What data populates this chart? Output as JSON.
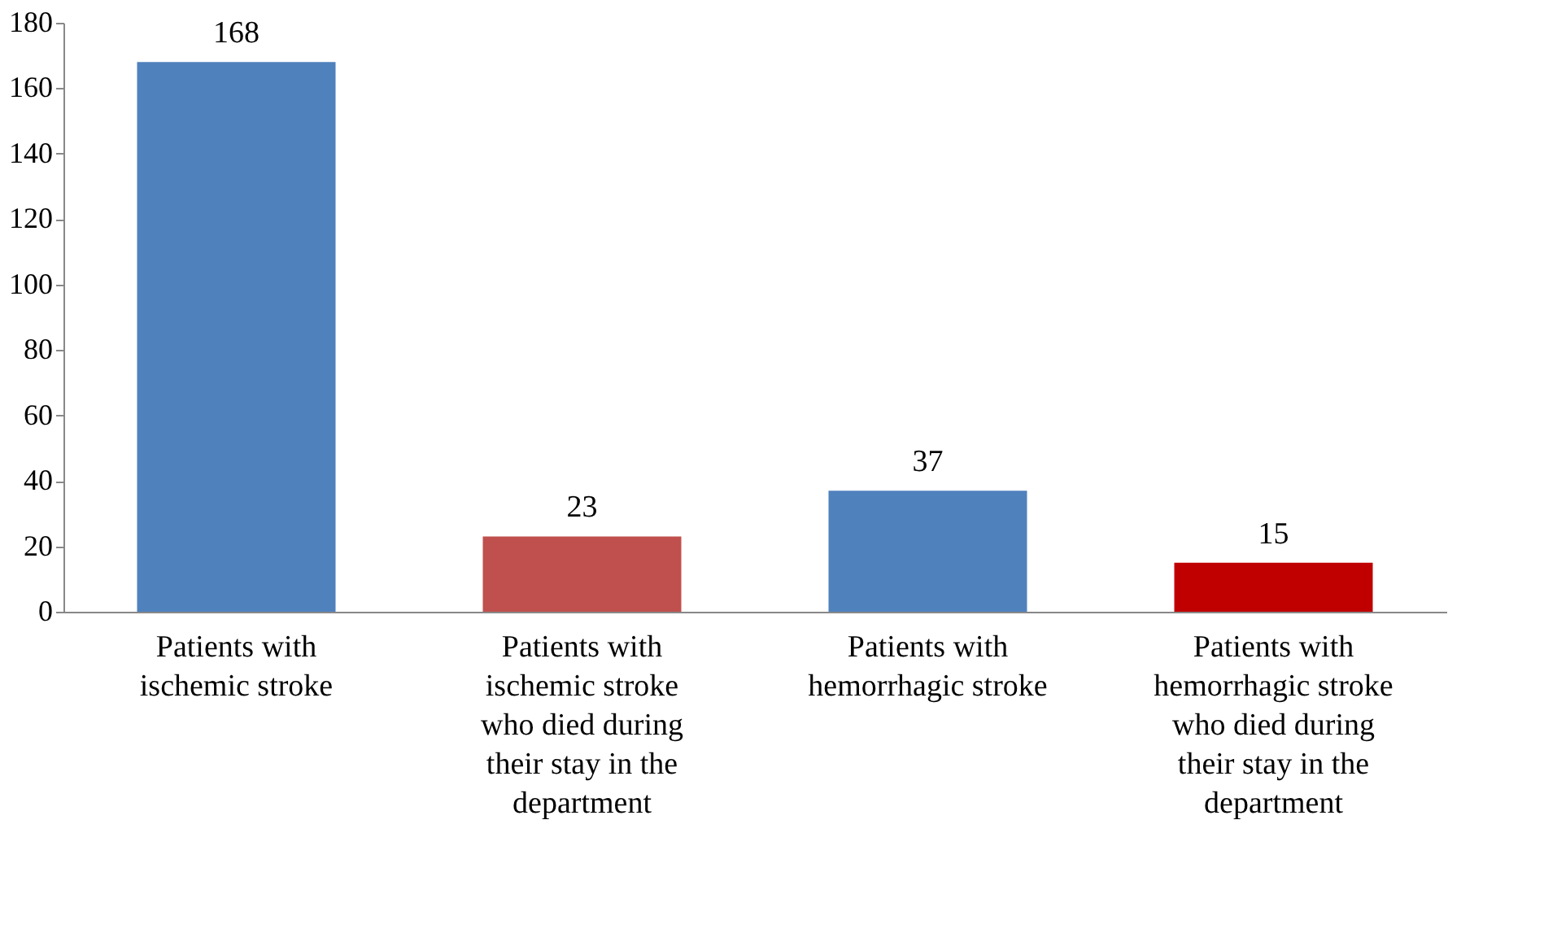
{
  "chart_data": {
    "type": "bar",
    "categories": [
      "Patients with ischemic stroke",
      "Patients with ischemic stroke who died during their stay in the department",
      "Patients with hemorrhagic stroke",
      "Patients with hemorrhagic stroke who died during their stay in the department"
    ],
    "values": [
      168,
      23,
      37,
      15
    ],
    "colors": [
      "#4f81bd",
      "#c0504d",
      "#4f81bd",
      "#c00000"
    ],
    "ylim": [
      0,
      180
    ],
    "yticks": [
      0,
      20,
      40,
      60,
      80,
      100,
      120,
      140,
      160,
      180
    ],
    "data_labels": true,
    "grid": false
  }
}
